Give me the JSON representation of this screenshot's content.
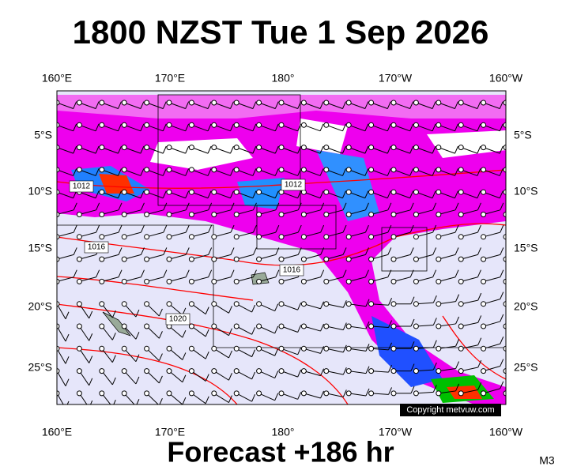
{
  "header": {
    "title": "1800 NZST Tue 1 Sep 2026"
  },
  "map": {
    "x_labels": [
      "160°E",
      "170°E",
      "180°",
      "170°W",
      "160°W"
    ],
    "y_labels": [
      "5°S",
      "10°S",
      "15°S",
      "20°S",
      "25°S"
    ],
    "isobar_labels": [
      "1012",
      "1012",
      "1016",
      "1016",
      "1020"
    ],
    "copyright": "Copyright metvuw.com"
  },
  "footer": {
    "forecast": "Forecast +186 hr",
    "code": "M3"
  }
}
